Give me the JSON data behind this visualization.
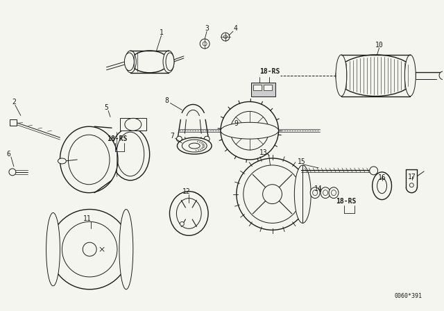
{
  "background_color": "#f5f5f0",
  "line_color": "#1a1a1a",
  "diagram_code": "0060*391",
  "figsize": [
    6.4,
    4.48
  ],
  "dpi": 100,
  "parts_labels": [
    [
      "1",
      230,
      48
    ],
    [
      "2",
      18,
      148
    ],
    [
      "3",
      300,
      38
    ],
    [
      "4",
      338,
      42
    ],
    [
      "5",
      148,
      158
    ],
    [
      "6",
      12,
      222
    ],
    [
      "7",
      248,
      198
    ],
    [
      "8",
      238,
      148
    ],
    [
      "9",
      330,
      178
    ],
    [
      "10",
      548,
      65
    ],
    [
      "11",
      112,
      318
    ],
    [
      "12",
      265,
      278
    ],
    [
      "13",
      375,
      222
    ],
    [
      "14",
      462,
      278
    ],
    [
      "15",
      430,
      235
    ],
    [
      "16",
      553,
      268
    ],
    [
      "17",
      590,
      268
    ]
  ]
}
